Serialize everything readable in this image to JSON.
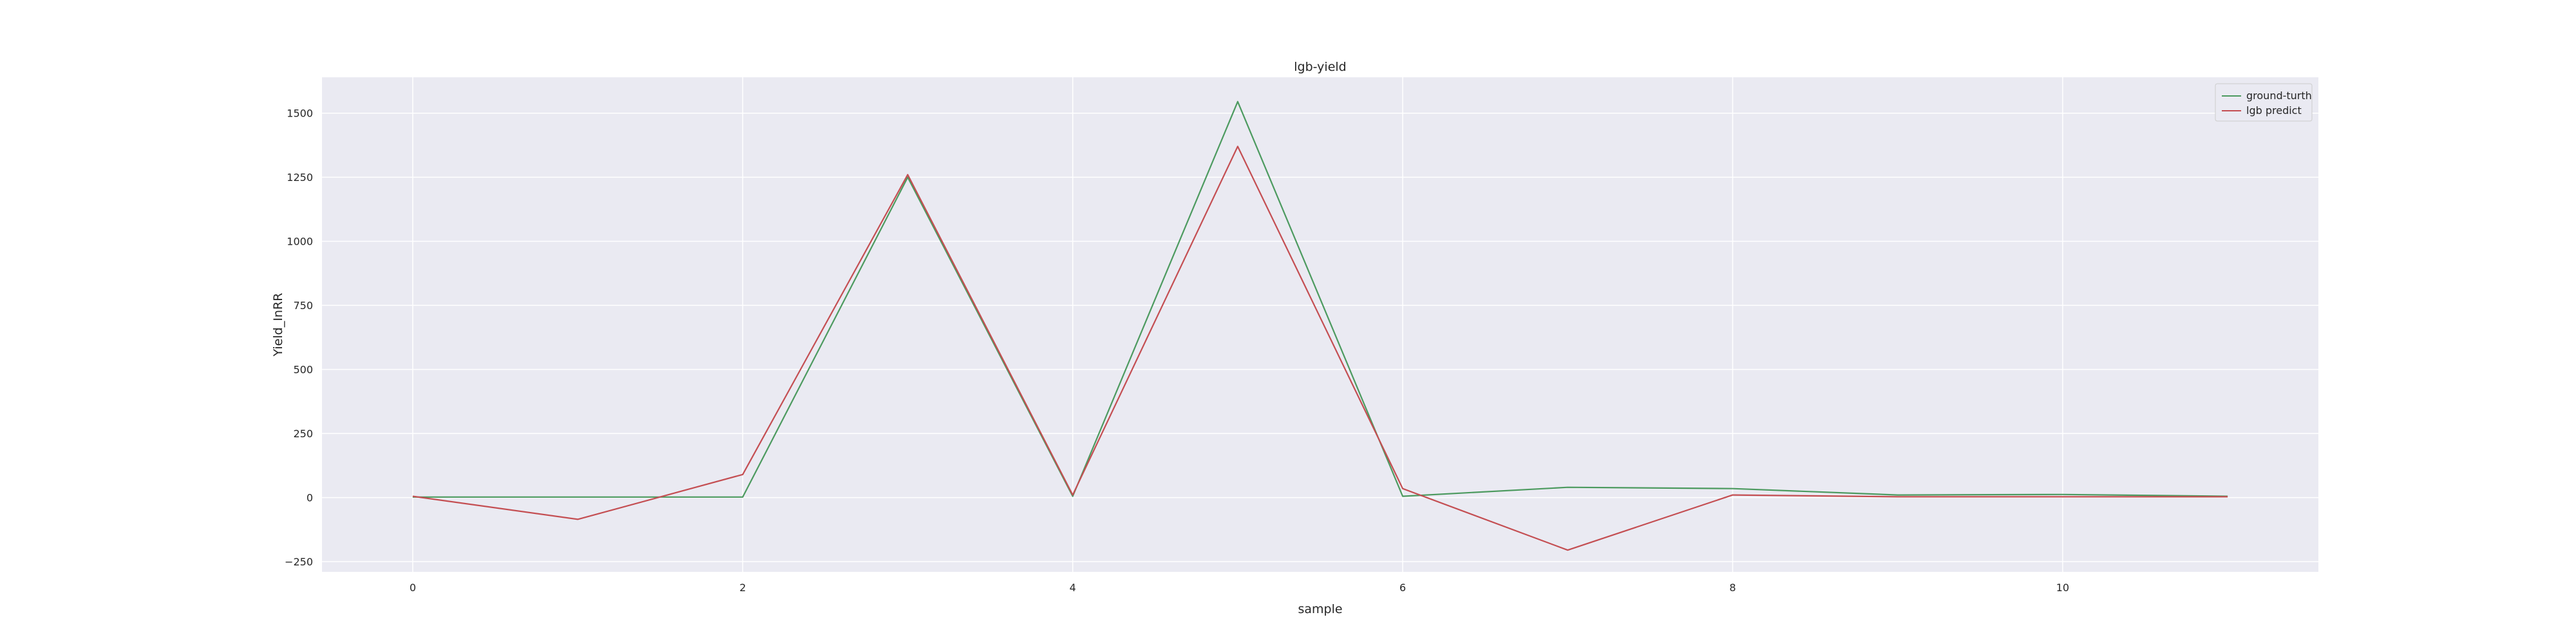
{
  "chart_data": {
    "type": "line",
    "title": "lgb-yield",
    "xlabel": "sample",
    "ylabel": "Yield_InRR",
    "xlim": [
      -0.55,
      11.55
    ],
    "ylim": [
      -290,
      1640
    ],
    "xticks": [
      0,
      2,
      4,
      6,
      8,
      10
    ],
    "yticks": [
      -250,
      0,
      250,
      500,
      750,
      1000,
      1250,
      1500
    ],
    "grid": true,
    "legend_position": "top-right",
    "x": [
      0,
      1,
      2,
      3,
      4,
      5,
      6,
      7,
      8,
      9,
      10,
      11
    ],
    "series": [
      {
        "name": "ground-turth",
        "color": "#4c9a5f",
        "values": [
          2,
          2,
          2,
          1250,
          5,
          1545,
          5,
          40,
          35,
          10,
          12,
          5
        ]
      },
      {
        "name": "lgb predict",
        "color": "#c44e52",
        "values": [
          5,
          -85,
          90,
          1260,
          10,
          1370,
          35,
          -205,
          10,
          3,
          3,
          3
        ]
      }
    ]
  }
}
